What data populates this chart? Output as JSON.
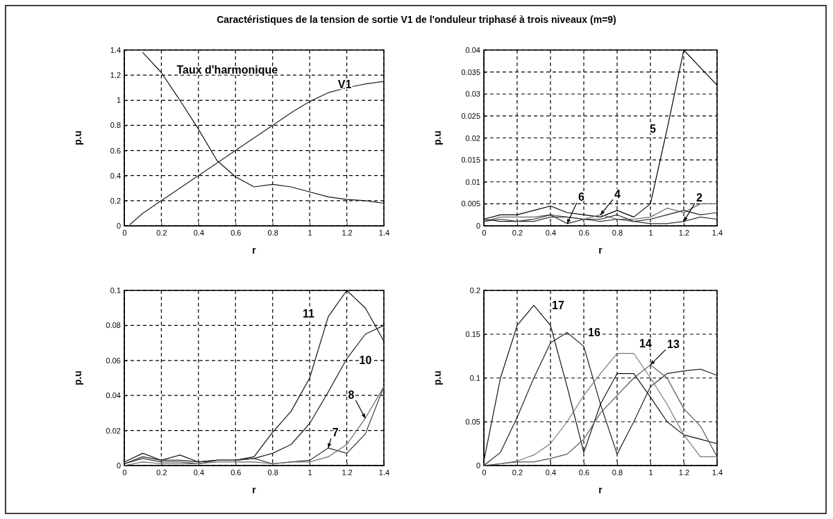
{
  "chart_data": [
    {
      "type": "line",
      "title": "Caractéristiques  de la tension de sortie V1 de l'onduleur triphasé à trois niveaux (m=9)",
      "xlabel": "r",
      "ylabel": "p.u",
      "xlim": [
        0,
        1.4
      ],
      "ylim": [
        0,
        1.4
      ],
      "xticks": [
        0,
        0.2,
        0.4,
        0.6,
        0.8,
        1,
        1.2,
        1.4
      ],
      "yticks": [
        0,
        0.2,
        0.4,
        0.6,
        0.8,
        1,
        1.2,
        1.4
      ],
      "grid": true,
      "line_style": "solid",
      "marker": "none",
      "series": [
        {
          "name": "V1",
          "color": "#222222",
          "x": [
            0.03,
            0.1,
            0.2,
            0.3,
            0.4,
            0.5,
            0.6,
            0.7,
            0.8,
            0.9,
            1.0,
            1.1,
            1.2,
            1.3,
            1.4
          ],
          "values": [
            0.01,
            0.1,
            0.2,
            0.3,
            0.4,
            0.5,
            0.6,
            0.7,
            0.8,
            0.9,
            0.99,
            1.06,
            1.1,
            1.13,
            1.15
          ]
        },
        {
          "name": "Taux d'harmonique",
          "color": "#111111",
          "x": [
            0.1,
            0.2,
            0.3,
            0.4,
            0.5,
            0.6,
            0.7,
            0.8,
            0.9,
            1.0,
            1.1,
            1.2,
            1.3,
            1.4
          ],
          "values": [
            1.38,
            1.22,
            1.0,
            0.77,
            0.52,
            0.39,
            0.31,
            0.33,
            0.31,
            0.27,
            0.23,
            0.21,
            0.2,
            0.18
          ]
        }
      ]
    },
    {
      "type": "line",
      "xlabel": "r",
      "ylabel": "p.u",
      "xlim": [
        0,
        1.4
      ],
      "ylim": [
        0,
        0.04
      ],
      "xticks": [
        0,
        0.2,
        0.4,
        0.6,
        0.8,
        1,
        1.2,
        1.4
      ],
      "yticks": [
        0,
        0.005,
        0.01,
        0.015,
        0.02,
        0.025,
        0.03,
        0.035,
        0.04
      ],
      "grid": true,
      "line_style": "solid",
      "marker": "none",
      "x": [
        0,
        0.1,
        0.2,
        0.3,
        0.4,
        0.5,
        0.6,
        0.7,
        0.8,
        0.9,
        1.0,
        1.1,
        1.2,
        1.3,
        1.4
      ],
      "series": [
        {
          "name": "5",
          "color": "#000000",
          "values": [
            0.0015,
            0.0025,
            0.0025,
            0.0035,
            0.0045,
            0.003,
            0.0025,
            0.002,
            0.0035,
            0.002,
            0.005,
            0.022,
            0.04,
            0.036,
            0.032
          ]
        },
        {
          "name": "4",
          "color": "#666666",
          "values": [
            0.001,
            0.002,
            0.002,
            0.002,
            0.0025,
            0.002,
            0.0015,
            0.0025,
            0.0015,
            0.0015,
            0.002,
            0.004,
            0.003,
            0.005,
            0.005
          ]
        },
        {
          "name": "6",
          "color": "#222222",
          "values": [
            0.0015,
            0.001,
            0.001,
            0.0015,
            0.0025,
            0.0005,
            0.0015,
            0.0015,
            0.0025,
            0.001,
            0.0015,
            0.0025,
            0.0035,
            0.0025,
            0.003
          ]
        },
        {
          "name": "2",
          "color": "#333333",
          "values": [
            0.001,
            0.0015,
            0.001,
            0.001,
            0.002,
            0.002,
            0.0015,
            0.001,
            0.0015,
            0.001,
            0.0005,
            0.0005,
            0.001,
            0.002,
            0.0015
          ]
        }
      ]
    },
    {
      "type": "line",
      "xlabel": "r",
      "ylabel": "p.u",
      "xlim": [
        0,
        1.4
      ],
      "ylim": [
        0,
        0.1
      ],
      "xticks": [
        0,
        0.2,
        0.4,
        0.6,
        0.8,
        1,
        1.2,
        1.4
      ],
      "yticks": [
        0,
        0.02,
        0.04,
        0.06,
        0.08,
        0.1
      ],
      "grid": true,
      "line_style": "solid",
      "marker": "none",
      "x": [
        0,
        0.1,
        0.2,
        0.3,
        0.4,
        0.5,
        0.6,
        0.7,
        0.8,
        0.9,
        1.0,
        1.1,
        1.2,
        1.3,
        1.4
      ],
      "series": [
        {
          "name": "11",
          "color": "#111111",
          "values": [
            0.002,
            0.007,
            0.003,
            0.006,
            0.002,
            0.003,
            0.003,
            0.005,
            0.019,
            0.031,
            0.05,
            0.085,
            0.1,
            0.09,
            0.071
          ]
        },
        {
          "name": "10",
          "color": "#222222",
          "values": [
            0.001,
            0.005,
            0.003,
            0.003,
            0.002,
            0.003,
            0.003,
            0.004,
            0.007,
            0.012,
            0.024,
            0.042,
            0.061,
            0.075,
            0.08
          ]
        },
        {
          "name": "7",
          "color": "#333333",
          "values": [
            0.001,
            0.004,
            0.002,
            0.002,
            0.001,
            0.003,
            0.003,
            0.004,
            0.001,
            0.002,
            0.003,
            0.01,
            0.007,
            0.018,
            0.045
          ]
        },
        {
          "name": "8",
          "color": "#666666",
          "values": [
            0.0,
            0.002,
            0.001,
            0.001,
            0.001,
            0.002,
            0.002,
            0.002,
            0.001,
            0.002,
            0.002,
            0.005,
            0.012,
            0.027,
            0.045
          ]
        }
      ]
    },
    {
      "type": "line",
      "xlabel": "r",
      "ylabel": "p.u",
      "xlim": [
        0,
        1.4
      ],
      "ylim": [
        0,
        0.2
      ],
      "xticks": [
        0,
        0.2,
        0.4,
        0.6,
        0.8,
        1,
        1.2,
        1.4
      ],
      "yticks": [
        0,
        0.05,
        0.1,
        0.15,
        0.2
      ],
      "grid": true,
      "line_style": "solid",
      "marker": "none",
      "x": [
        0,
        0.1,
        0.2,
        0.3,
        0.4,
        0.5,
        0.6,
        0.7,
        0.8,
        0.9,
        1.0,
        1.1,
        1.2,
        1.3,
        1.4
      ],
      "series": [
        {
          "name": "17",
          "color": "#111111",
          "values": [
            0.005,
            0.1,
            0.16,
            0.183,
            0.16,
            0.09,
            0.015,
            0.07,
            0.105,
            0.105,
            0.078,
            0.05,
            0.035,
            0.03,
            0.025
          ]
        },
        {
          "name": "16",
          "color": "#222222",
          "values": [
            0.0,
            0.015,
            0.055,
            0.1,
            0.14,
            0.152,
            0.136,
            0.07,
            0.013,
            0.05,
            0.09,
            0.105,
            0.108,
            0.11,
            0.103
          ]
        },
        {
          "name": "14",
          "color": "#777777",
          "values": [
            0.0,
            0.002,
            0.005,
            0.012,
            0.025,
            0.05,
            0.08,
            0.105,
            0.128,
            0.128,
            0.1,
            0.07,
            0.035,
            0.01,
            0.01
          ]
        },
        {
          "name": "13",
          "color": "#555555",
          "values": [
            0.0,
            0.002,
            0.004,
            0.004,
            0.008,
            0.013,
            0.03,
            0.06,
            0.08,
            0.1,
            0.115,
            0.1,
            0.065,
            0.045,
            0.01
          ]
        }
      ]
    }
  ]
}
